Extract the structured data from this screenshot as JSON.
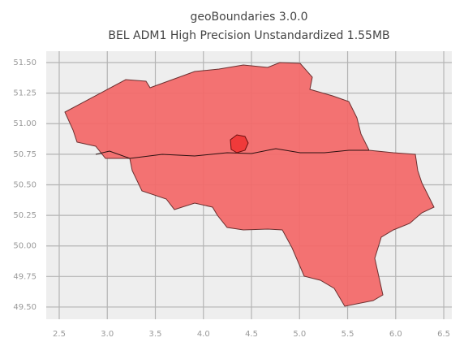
{
  "chart_data": {
    "type": "map",
    "title": [
      "geoBoundaries 3.0.0",
      "BEL ADM1 High Precision Unstandardized 1.55MB"
    ],
    "xlim": [
      2.365,
      6.584
    ],
    "ylim": [
      49.4,
      51.593
    ],
    "xticks": [
      2.5,
      {
        "value": 3.0,
        "label": "3.0"
      },
      3.5,
      {
        "value": 4.0,
        "label": "4.0"
      },
      4.5,
      {
        "value": 5.0,
        "label": "5.0"
      },
      5.5,
      {
        "value": 6.0,
        "label": "6.0"
      },
      6.5
    ],
    "yticks": [
      {
        "value": 49.5,
        "label": "49.50"
      },
      49.75,
      {
        "value": 50.0,
        "label": "50.00"
      },
      50.25,
      {
        "value": 50.5,
        "label": "50.50"
      },
      50.75,
      {
        "value": 51.0,
        "label": "51.00"
      },
      51.25,
      {
        "value": 51.5,
        "label": "51.50"
      }
    ],
    "grid": true
  }
}
